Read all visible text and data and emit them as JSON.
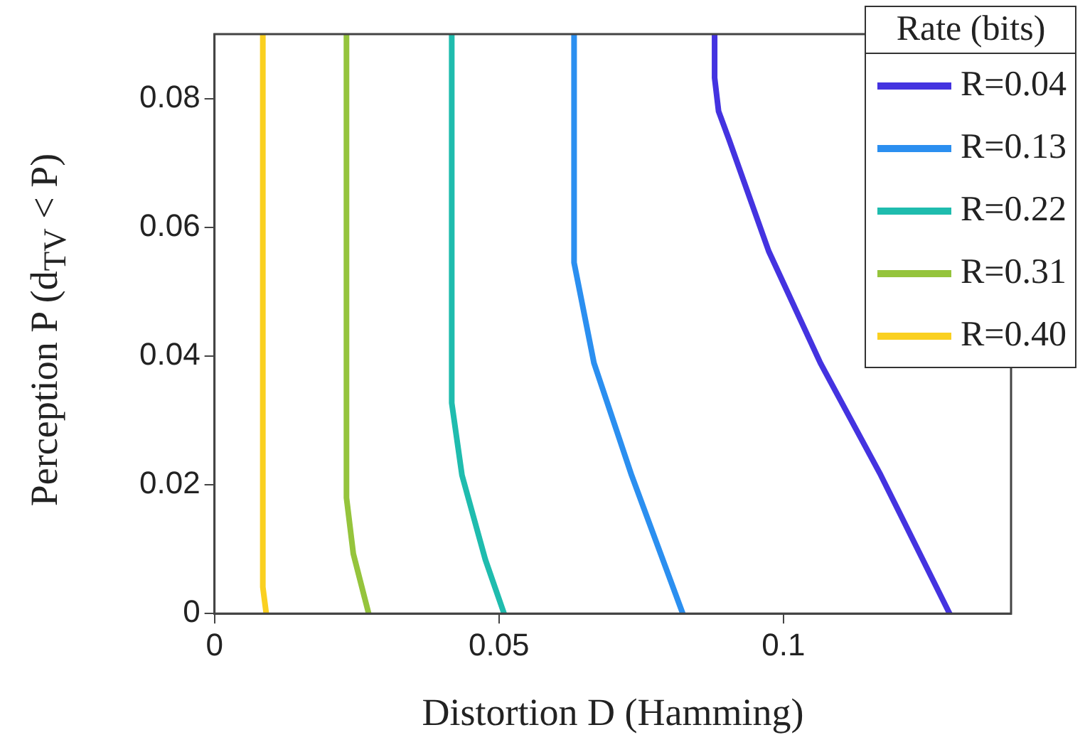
{
  "chart_data": {
    "type": "line",
    "xlabel": "Distortion D (Hamming)",
    "ylabel": "Perception P (d$_{TV}$ < P)",
    "legend_title": "Rate (bits)",
    "legend": "top right",
    "marker": "none",
    "line_style": "solid",
    "grid": false,
    "xlim": [
      0,
      0.14
    ],
    "xticks": [
      0,
      0.05,
      {
        "value": 0.1,
        "label": "0.1"
      }
    ],
    "ylim": [
      0,
      0.09
    ],
    "yticks": [
      0,
      0.02,
      0.04,
      0.06,
      0.08
    ],
    "series": [
      {
        "name": "R=0.04",
        "color": "#4433e0",
        "x": [
          0.1292,
          0.1171,
          0.1065,
          0.0974,
          0.0904,
          0.0886,
          0.0879,
          0.0879
        ],
        "values": [
          0,
          0.0215,
          0.0389,
          0.0563,
          0.0737,
          0.078,
          0.0832,
          0.09
        ]
      },
      {
        "name": "R=0.13",
        "color": "#2b8ff0",
        "x": [
          0.0823,
          0.0733,
          0.0667,
          0.0632,
          0.0632
        ],
        "values": [
          0,
          0.0215,
          0.0389,
          0.0545,
          0.09
        ]
      },
      {
        "name": "R=0.22",
        "color": "#1fbcae",
        "x": [
          0.0509,
          0.0476,
          0.0435,
          0.0417,
          0.0417
        ],
        "values": [
          0,
          0.0084,
          0.0215,
          0.0327,
          0.09
        ]
      },
      {
        "name": "R=0.31",
        "color": "#95c43c",
        "x": [
          0.0271,
          0.0244,
          0.0232,
          0.0232
        ],
        "values": [
          0,
          0.0093,
          0.018,
          0.09
        ]
      },
      {
        "name": "R=0.40",
        "color": "#fad020",
        "x": [
          0.0091,
          0.0085,
          0.0085
        ],
        "values": [
          0,
          0.0041,
          0.09
        ]
      }
    ]
  }
}
